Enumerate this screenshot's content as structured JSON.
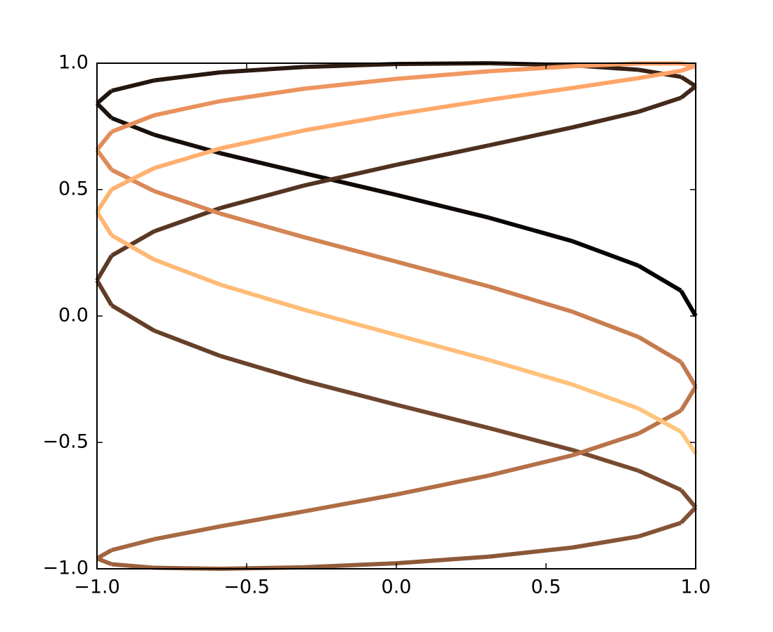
{
  "chart_data": {
    "type": "line",
    "colormap": "copper",
    "linewidth": 6,
    "x": [
      1,
      0.951,
      0.809,
      0.588,
      0.309,
      0,
      -0.309,
      -0.588,
      -0.809,
      -0.951,
      -1,
      -0.951,
      -0.809,
      -0.588,
      -0.309,
      0,
      0.309,
      0.588,
      0.809,
      0.951,
      1,
      0.951,
      0.809,
      0.588,
      0.309,
      0,
      -0.309,
      -0.588,
      -0.809,
      -0.951,
      -1,
      -0.951,
      -0.809,
      -0.588,
      -0.309,
      0,
      0.309,
      0.588,
      0.809,
      0.951,
      1,
      0.951,
      0.809,
      0.588,
      0.309,
      0,
      -0.309,
      -0.588,
      -0.809,
      -0.951,
      -1,
      -0.951,
      -0.809,
      -0.588,
      -0.309,
      0,
      0.309,
      0.588,
      0.809,
      0.951,
      1,
      0.951,
      0.809,
      0.588,
      0.309,
      0,
      -0.309,
      -0.588,
      -0.809,
      -0.951,
      -1,
      -0.951,
      -0.809,
      -0.588,
      -0.309,
      0,
      0.309,
      0.588,
      0.809,
      0.951,
      1,
      0.951,
      0.809,
      0.588,
      0.309,
      0,
      -0.309,
      -0.588,
      -0.809,
      -0.951,
      -1,
      -0.951,
      -0.809,
      -0.588,
      -0.309,
      0,
      0.309,
      0.588,
      0.809,
      0.951,
      1
    ],
    "values": [
      0,
      0.1,
      0.199,
      0.296,
      0.389,
      0.479,
      0.565,
      0.644,
      0.717,
      0.783,
      0.841,
      0.891,
      0.932,
      0.964,
      0.985,
      0.997,
      1,
      0.992,
      0.974,
      0.946,
      0.909,
      0.863,
      0.808,
      0.746,
      0.675,
      0.598,
      0.516,
      0.427,
      0.335,
      0.239,
      0.141,
      0.042,
      -0.058,
      -0.158,
      -0.256,
      -0.351,
      -0.443,
      -0.53,
      -0.612,
      -0.688,
      -0.757,
      -0.818,
      -0.872,
      -0.916,
      -0.952,
      -0.978,
      -0.994,
      -1,
      -0.996,
      -0.982,
      -0.959,
      -0.926,
      -0.883,
      -0.832,
      -0.773,
      -0.706,
      -0.631,
      -0.551,
      -0.465,
      -0.374,
      -0.279,
      -0.182,
      -0.083,
      0.017,
      0.117,
      0.215,
      0.312,
      0.405,
      0.494,
      0.578,
      0.657,
      0.729,
      0.794,
      0.85,
      0.899,
      0.938,
      0.968,
      0.988,
      0.999,
      0.999,
      0.989,
      0.97,
      0.941,
      0.902,
      0.855,
      0.798,
      0.734,
      0.663,
      0.585,
      0.501,
      0.412,
      0.319,
      0.223,
      0.124,
      0.025,
      -0.075,
      -0.174,
      -0.271,
      -0.366,
      -0.458,
      -0.544
    ],
    "xlim": [
      -1,
      1
    ],
    "ylim": [
      -1,
      1
    ],
    "xticks": [
      {
        "value": -1,
        "label": "−1.0"
      },
      {
        "value": -0.5,
        "label": "−0.5"
      },
      {
        "value": 0,
        "label": "0.0"
      },
      0.5,
      {
        "value": 1,
        "label": "1.0"
      }
    ],
    "yticks": [
      {
        "value": -1,
        "label": "−1.0"
      },
      {
        "value": -0.5,
        "label": "−0.5"
      },
      {
        "value": 0,
        "label": "0.0"
      },
      0.5,
      {
        "value": 1,
        "label": "1.0"
      }
    ]
  }
}
